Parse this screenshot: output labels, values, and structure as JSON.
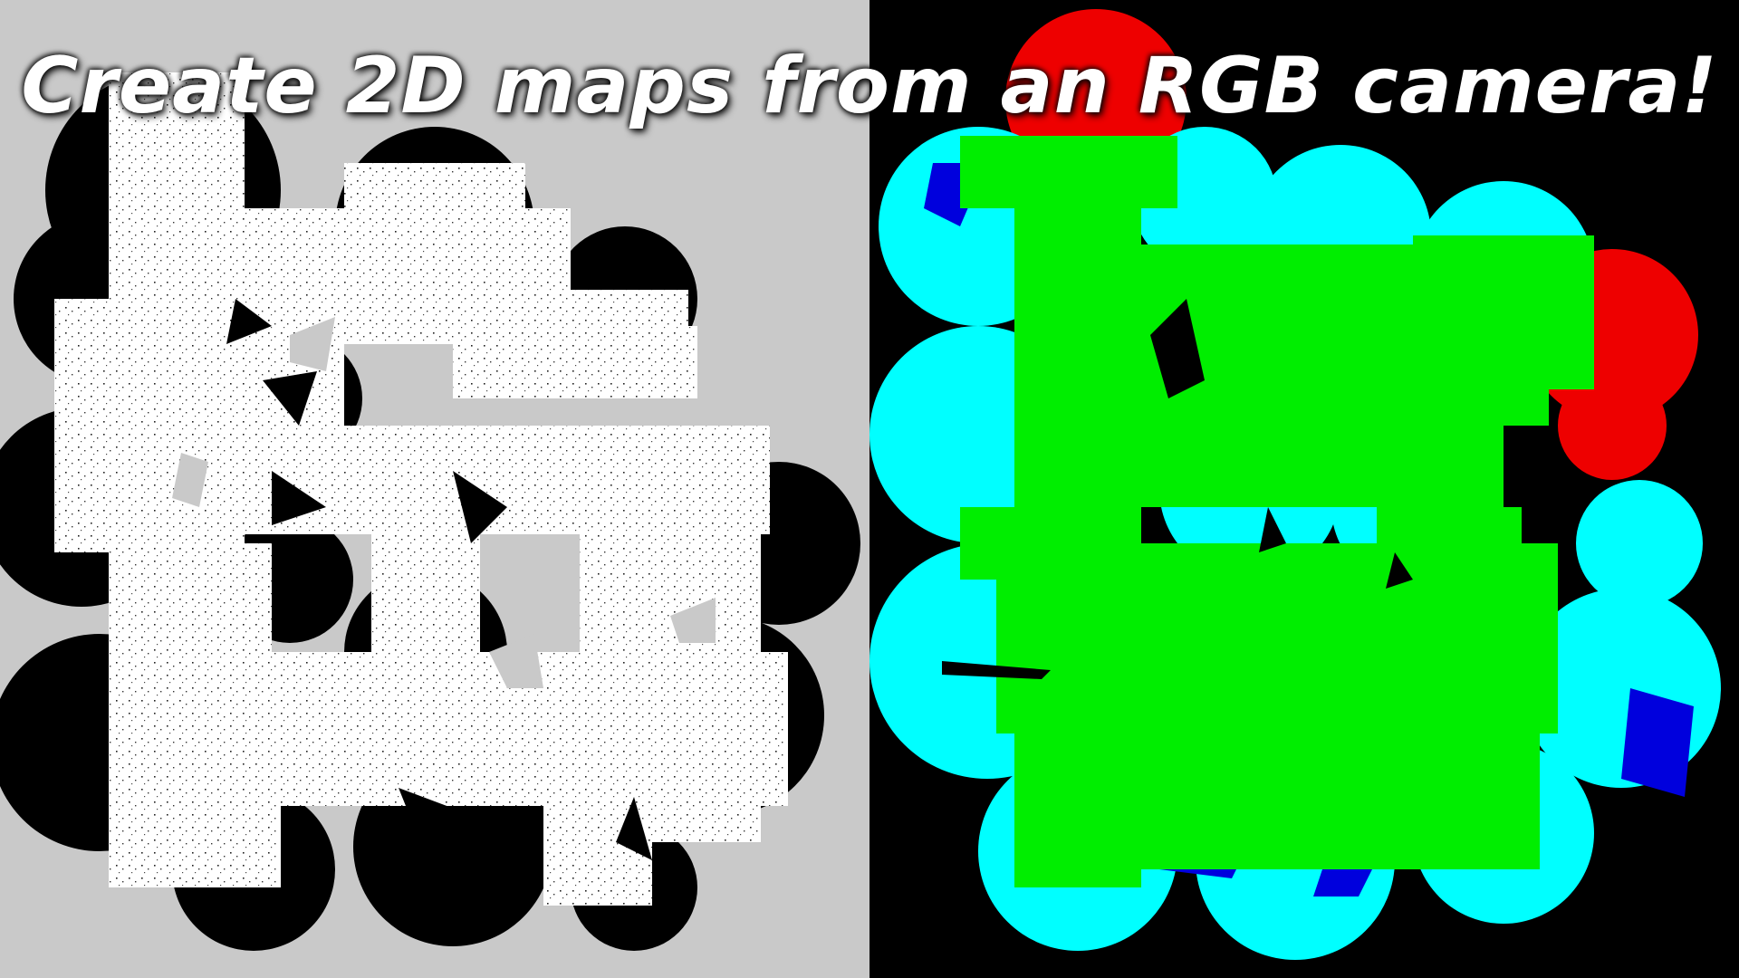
{
  "headline": "Create 2D maps from an RGB camera!",
  "colors": {
    "left_background": "#c9c9c9",
    "free_space": "#ffffff",
    "obstacle": "#000000",
    "right_background": "#000000",
    "green": "#00ee00",
    "cyan": "#00ffff",
    "blue": "#0000dd",
    "red": "#ee0000"
  }
}
